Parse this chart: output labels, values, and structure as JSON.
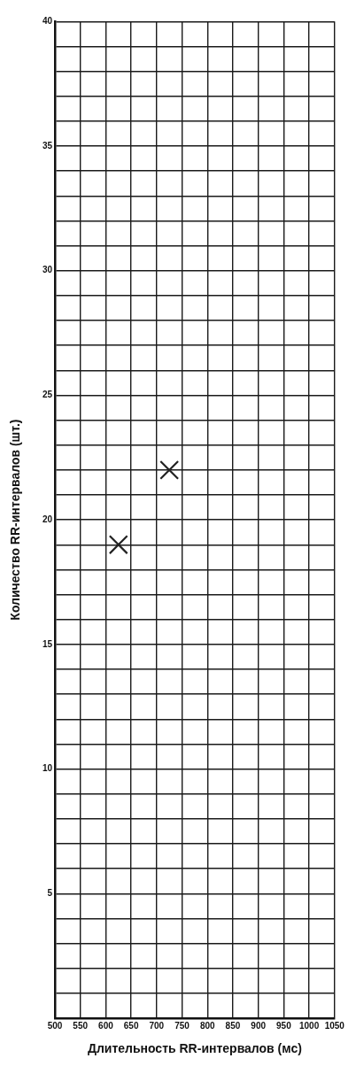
{
  "chart_data": {
    "type": "scatter",
    "xlabel": "Длительность RR-интервалов (мс)",
    "ylabel": "Количество RR-интервалов (шт.)",
    "x": [
      625,
      725
    ],
    "values": [
      19,
      22
    ],
    "color": "#222222",
    "marker": "cross",
    "grid": true,
    "xlim": [
      500,
      1050
    ],
    "xticks": [
      500,
      550,
      600,
      650,
      700,
      750,
      800,
      850,
      900,
      950,
      1000,
      1050
    ],
    "ylim": [
      0,
      40
    ],
    "yticks": [
      {
        "value": 0,
        "label": null
      },
      {
        "value": 1,
        "label": null
      },
      {
        "value": 2,
        "label": null
      },
      {
        "value": 3,
        "label": null
      },
      {
        "value": 4,
        "label": null
      },
      5,
      {
        "value": 6,
        "label": null
      },
      {
        "value": 7,
        "label": null
      },
      {
        "value": 8,
        "label": null
      },
      {
        "value": 9,
        "label": null
      },
      10,
      {
        "value": 11,
        "label": null
      },
      {
        "value": 12,
        "label": null
      },
      {
        "value": 13,
        "label": null
      },
      {
        "value": 14,
        "label": null
      },
      15,
      {
        "value": 16,
        "label": null
      },
      {
        "value": 17,
        "label": null
      },
      {
        "value": 18,
        "label": null
      },
      {
        "value": 19,
        "label": null
      },
      20,
      {
        "value": 21,
        "label": null
      },
      {
        "value": 22,
        "label": null
      },
      {
        "value": 23,
        "label": null
      },
      {
        "value": 24,
        "label": null
      },
      25,
      {
        "value": 26,
        "label": null
      },
      {
        "value": 27,
        "label": null
      },
      {
        "value": 28,
        "label": null
      },
      {
        "value": 29,
        "label": null
      },
      30,
      {
        "value": 31,
        "label": null
      },
      {
        "value": 32,
        "label": null
      },
      {
        "value": 33,
        "label": null
      },
      {
        "value": 34,
        "label": null
      },
      35,
      {
        "value": 36,
        "label": null
      },
      {
        "value": 37,
        "label": null
      },
      {
        "value": 38,
        "label": null
      },
      {
        "value": 39,
        "label": null
      },
      40
    ]
  }
}
